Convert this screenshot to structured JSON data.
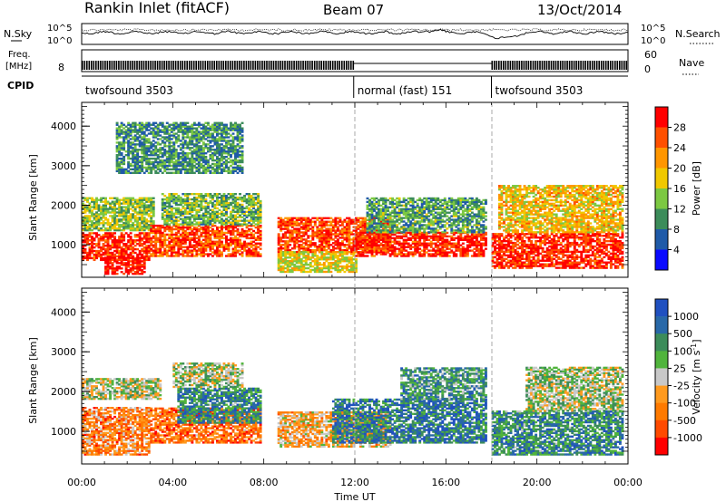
{
  "header": {
    "station": "Rankin Inlet (fitACF)",
    "beam": "Beam 07",
    "date": "13/Oct/2014"
  },
  "noise_panel": {
    "left_label": "N.Sky",
    "right_label": "N.Search",
    "left_ticks": [
      "10^5",
      "10^0"
    ],
    "right_ticks": [
      "10^5",
      "10^0"
    ]
  },
  "freq_panel": {
    "left_label_1": "Freq.",
    "left_label_2": "[MHz]",
    "left_ticks": [
      "8"
    ],
    "right_label": "Nave",
    "right_ticks": [
      "60",
      "0"
    ]
  },
  "cpid_panel": {
    "label": "CPID",
    "segments": [
      {
        "start_hour": 0,
        "end_hour": 11.95,
        "text": "twofsound 3503"
      },
      {
        "start_hour": 11.95,
        "end_hour": 18.0,
        "text": "normal (fast) 151"
      },
      {
        "start_hour": 18.0,
        "end_hour": 24,
        "text": "twofsound 3503"
      }
    ]
  },
  "x_axis": {
    "label": "Time UT",
    "ticks": [
      "00:00",
      "04:00",
      "08:00",
      "12:00",
      "16:00",
      "20:00",
      "00:00"
    ]
  },
  "power_colorbar": {
    "title": "Power [dB]",
    "ticks": [
      "28",
      "24",
      "20",
      "16",
      "12",
      "8",
      "4"
    ],
    "colors": [
      "#ff0000",
      "#ff5000",
      "#ff9600",
      "#f0c800",
      "#7cc842",
      "#3c8c5a",
      "#1f5aa8",
      "#0a0aff"
    ]
  },
  "velocity_colorbar": {
    "title": "Velocity [m s",
    "title_sup": "-1",
    "title_close": "]",
    "ticks": [
      "1000",
      "500",
      "100",
      "25",
      "-25",
      "-100",
      "-500",
      "-1000"
    ],
    "colors": [
      "#2050c0",
      "#2868a8",
      "#3c8c5a",
      "#50b43c",
      "#c8c8c8",
      "#ff9a1e",
      "#ff7a00",
      "#ff4a00",
      "#ff0000"
    ]
  },
  "chart_data": [
    {
      "type": "heatmap",
      "title": "",
      "xlabel": "Time UT",
      "ylabel": "Slant Range [km]",
      "xlim": [
        0,
        24
      ],
      "ylim": [
        180,
        4600
      ],
      "yticks": [
        1000,
        2000,
        3000,
        4000
      ],
      "colorbar": "Power [dB]",
      "bands": [
        {
          "t0": 0.0,
          "t1": 3.0,
          "r0": 600,
          "r1": 1300,
          "level": 0.9
        },
        {
          "t0": 1.0,
          "t1": 2.8,
          "r0": 250,
          "r1": 700,
          "level": 0.95
        },
        {
          "t0": 0.0,
          "t1": 3.2,
          "r0": 1350,
          "r1": 2200,
          "level": 0.45
        },
        {
          "t0": 3.0,
          "t1": 7.8,
          "r0": 700,
          "r1": 1500,
          "level": 0.85
        },
        {
          "t0": 3.5,
          "t1": 7.8,
          "r0": 1500,
          "r1": 2300,
          "level": 0.4
        },
        {
          "t0": 1.5,
          "t1": 7.0,
          "r0": 2800,
          "r1": 4100,
          "level": 0.3
        },
        {
          "t0": 8.6,
          "t1": 13.5,
          "r0": 800,
          "r1": 1700,
          "level": 0.85
        },
        {
          "t0": 8.6,
          "t1": 12.0,
          "r0": 300,
          "r1": 800,
          "level": 0.55
        },
        {
          "t0": 12.0,
          "t1": 17.8,
          "r0": 700,
          "r1": 1300,
          "level": 0.9
        },
        {
          "t0": 12.5,
          "t1": 17.8,
          "r0": 1300,
          "r1": 2200,
          "level": 0.35
        },
        {
          "t0": 18.0,
          "t1": 23.8,
          "r0": 400,
          "r1": 1300,
          "level": 0.9
        },
        {
          "t0": 18.3,
          "t1": 23.8,
          "r0": 1300,
          "r1": 2500,
          "level": 0.6
        }
      ]
    },
    {
      "type": "heatmap",
      "title": "",
      "xlabel": "Time UT",
      "ylabel": "Slant Range [km]",
      "xlim": [
        0,
        24
      ],
      "ylim": [
        180,
        4600
      ],
      "yticks": [
        1000,
        2000,
        3000,
        4000
      ],
      "colorbar": "Velocity [m s-1]",
      "bands": [
        {
          "t0": 0.0,
          "t1": 3.0,
          "r0": 400,
          "r1": 1600,
          "level": 0.3
        },
        {
          "t0": 0.0,
          "t1": 3.5,
          "r0": 1800,
          "r1": 2300,
          "level": 0.55
        },
        {
          "t0": 3.0,
          "t1": 7.8,
          "r0": 700,
          "r1": 1600,
          "level": 0.25
        },
        {
          "t0": 4.2,
          "t1": 7.8,
          "r0": 1200,
          "r1": 2100,
          "level": 0.75
        },
        {
          "t0": 4.0,
          "t1": 7.0,
          "r0": 2100,
          "r1": 2700,
          "level": 0.55
        },
        {
          "t0": 8.6,
          "t1": 13.5,
          "r0": 600,
          "r1": 1500,
          "level": 0.4
        },
        {
          "t0": 11.0,
          "t1": 17.8,
          "r0": 700,
          "r1": 1800,
          "level": 0.8
        },
        {
          "t0": 14.0,
          "t1": 17.8,
          "r0": 1800,
          "r1": 2600,
          "level": 0.7
        },
        {
          "t0": 18.0,
          "t1": 23.8,
          "r0": 400,
          "r1": 1500,
          "level": 0.75
        },
        {
          "t0": 19.5,
          "t1": 23.8,
          "r0": 1500,
          "r1": 2600,
          "level": 0.55
        }
      ]
    }
  ]
}
